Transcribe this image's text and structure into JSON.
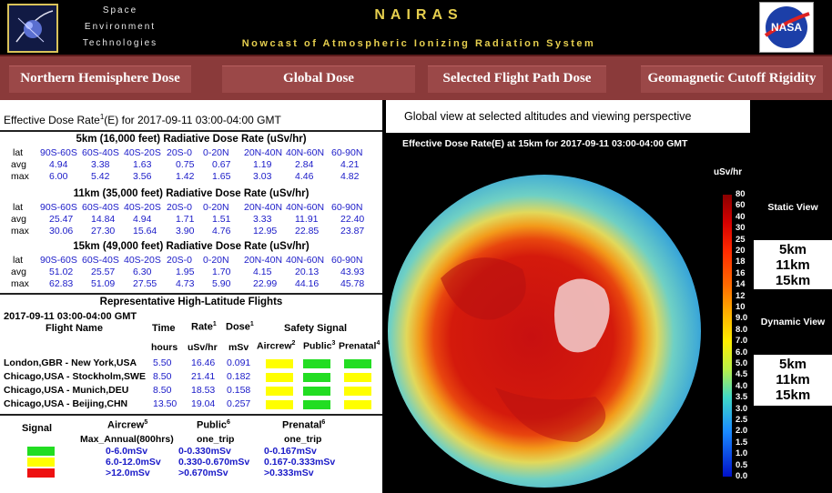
{
  "header": {
    "company_line1": "Space",
    "company_line2": "Environment",
    "company_line3": "Technologies",
    "title": "NAIRAS",
    "subtitle": "Nowcast of Atmospheric Ionizing Radiation System",
    "nasa_logo_text": "NASA"
  },
  "nav": {
    "tabs": [
      {
        "label": "Northern Hemisphere Dose"
      },
      {
        "label": "Global Dose"
      },
      {
        "label": "Selected Flight Path Dose"
      },
      {
        "label": "Geomagnetic Cutoff Rigidity"
      }
    ]
  },
  "left": {
    "eff_title_pre": "Effective Dose Rate",
    "eff_title_sup": "1",
    "eff_title_post": "(E) for 2017-09-11 03:00-04:00 GMT",
    "row_labels": {
      "lat": "lat",
      "avg": "avg",
      "max": "max"
    },
    "lat_bands": [
      "90S-60S",
      "60S-40S",
      "40S-20S",
      "20S-0",
      "0-20N",
      "20N-40N",
      "40N-60N",
      "60-90N"
    ],
    "altitudes": [
      {
        "title": "5km (16,000 feet) Radiative Dose Rate (uSv/hr)",
        "avg": [
          "4.94",
          "3.38",
          "1.63",
          "0.75",
          "0.67",
          "1.19",
          "2.84",
          "4.21"
        ],
        "max": [
          "6.00",
          "5.42",
          "3.56",
          "1.42",
          "1.65",
          "3.03",
          "4.46",
          "4.82"
        ]
      },
      {
        "title": "11km (35,000 feet) Radiative Dose Rate (uSv/hr)",
        "avg": [
          "25.47",
          "14.84",
          "4.94",
          "1.71",
          "1.51",
          "3.33",
          "11.91",
          "22.40"
        ],
        "max": [
          "30.06",
          "27.30",
          "15.64",
          "3.90",
          "4.76",
          "12.95",
          "22.85",
          "23.87"
        ]
      },
      {
        "title": "15km (49,000 feet) Radiative Dose Rate (uSv/hr)",
        "avg": [
          "51.02",
          "25.57",
          "6.30",
          "1.95",
          "1.70",
          "4.15",
          "20.13",
          "43.93"
        ],
        "max": [
          "62.83",
          "51.09",
          "27.55",
          "4.73",
          "5.90",
          "22.99",
          "44.16",
          "45.78"
        ]
      }
    ],
    "flights": {
      "title": "Representative High-Latitude Flights",
      "datetime": "2017-09-11 03:00-04:00 GMT",
      "col_flight": "Flight Name",
      "col_time": "Time",
      "col_rate": "Rate",
      "col_rate_sup": "1",
      "col_dose": "Dose",
      "col_dose_sup": "1",
      "col_safety": "Safety Signal",
      "unit_time": "hours",
      "unit_rate": "uSv/hr",
      "unit_dose": "mSv",
      "sub_aircrew": "Aircrew",
      "sub_aircrew_sup": "2",
      "sub_public": "Public",
      "sub_public_sup": "3",
      "sub_prenatal": "Prenatal",
      "sub_prenatal_sup": "4",
      "rows": [
        {
          "name": "London,GBR - New York,USA",
          "time": "5.50",
          "rate": "16.46",
          "dose": "0.091",
          "signals": [
            "yellow",
            "green",
            "green"
          ]
        },
        {
          "name": "Chicago,USA - Stockholm,SWE",
          "time": "8.50",
          "rate": "21.41",
          "dose": "0.182",
          "signals": [
            "yellow",
            "green",
            "yellow"
          ]
        },
        {
          "name": "Chicago,USA - Munich,DEU",
          "time": "8.50",
          "rate": "18.53",
          "dose": "0.158",
          "signals": [
            "yellow",
            "green",
            "yellow"
          ]
        },
        {
          "name": "Chicago,USA - Beijing,CHN",
          "time": "13.50",
          "rate": "19.04",
          "dose": "0.257",
          "signals": [
            "yellow",
            "green",
            "yellow"
          ]
        }
      ]
    },
    "legend": {
      "signal": "Signal",
      "aircrew": "Aircrew",
      "aircrew_sup": "5",
      "aircrew_sub": "Max_Annual(800hrs)",
      "public": "Public",
      "public_sup": "6",
      "public_sub": "one_trip",
      "prenatal": "Prenatal",
      "prenatal_sup": "6",
      "prenatal_sub": "one_trip",
      "rows": [
        {
          "color": "green",
          "aircrew": "0-6.0mSv",
          "public": "0-0.330mSv",
          "prenatal": "0-0.167mSv"
        },
        {
          "color": "yellow",
          "aircrew": "6.0-12.0mSv",
          "public": "0.330-0.670mSv",
          "prenatal": "0.167-0.333mSv"
        },
        {
          "color": "red",
          "aircrew": ">12.0mSv",
          "public": ">0.670mSv",
          "prenatal": ">0.333mSv"
        }
      ]
    }
  },
  "map": {
    "caption": "Global view at selected altitudes and viewing perspective",
    "plot_title": "Effective Dose Rate(E) at 15km for 2017-09-11 03:00-04:00 GMT",
    "colorbar_unit": "uSv/hr",
    "colorbar_ticks": [
      "80",
      "60",
      "40",
      "30",
      "25",
      "20",
      "18",
      "16",
      "14",
      "12",
      "10",
      "9.0",
      "8.0",
      "7.0",
      "6.0",
      "5.0",
      "4.5",
      "4.0",
      "3.5",
      "3.0",
      "2.5",
      "2.0",
      "1.5",
      "1.0",
      "0.5",
      "0.0"
    ]
  },
  "sidebar": {
    "static_view": "Static View",
    "dynamic_view": "Dynamic View",
    "static_alts": [
      "5km",
      "11km",
      "15km"
    ],
    "dynamic_alts": [
      "5km",
      "11km",
      "15km"
    ]
  },
  "colors": {
    "green": "#22dd22",
    "yellow": "#ffff00",
    "red": "#ee1111",
    "nav_bg": "#8a3a3a",
    "title_gold": "#e6cf4e",
    "value_blue": "#1a1ac8"
  }
}
